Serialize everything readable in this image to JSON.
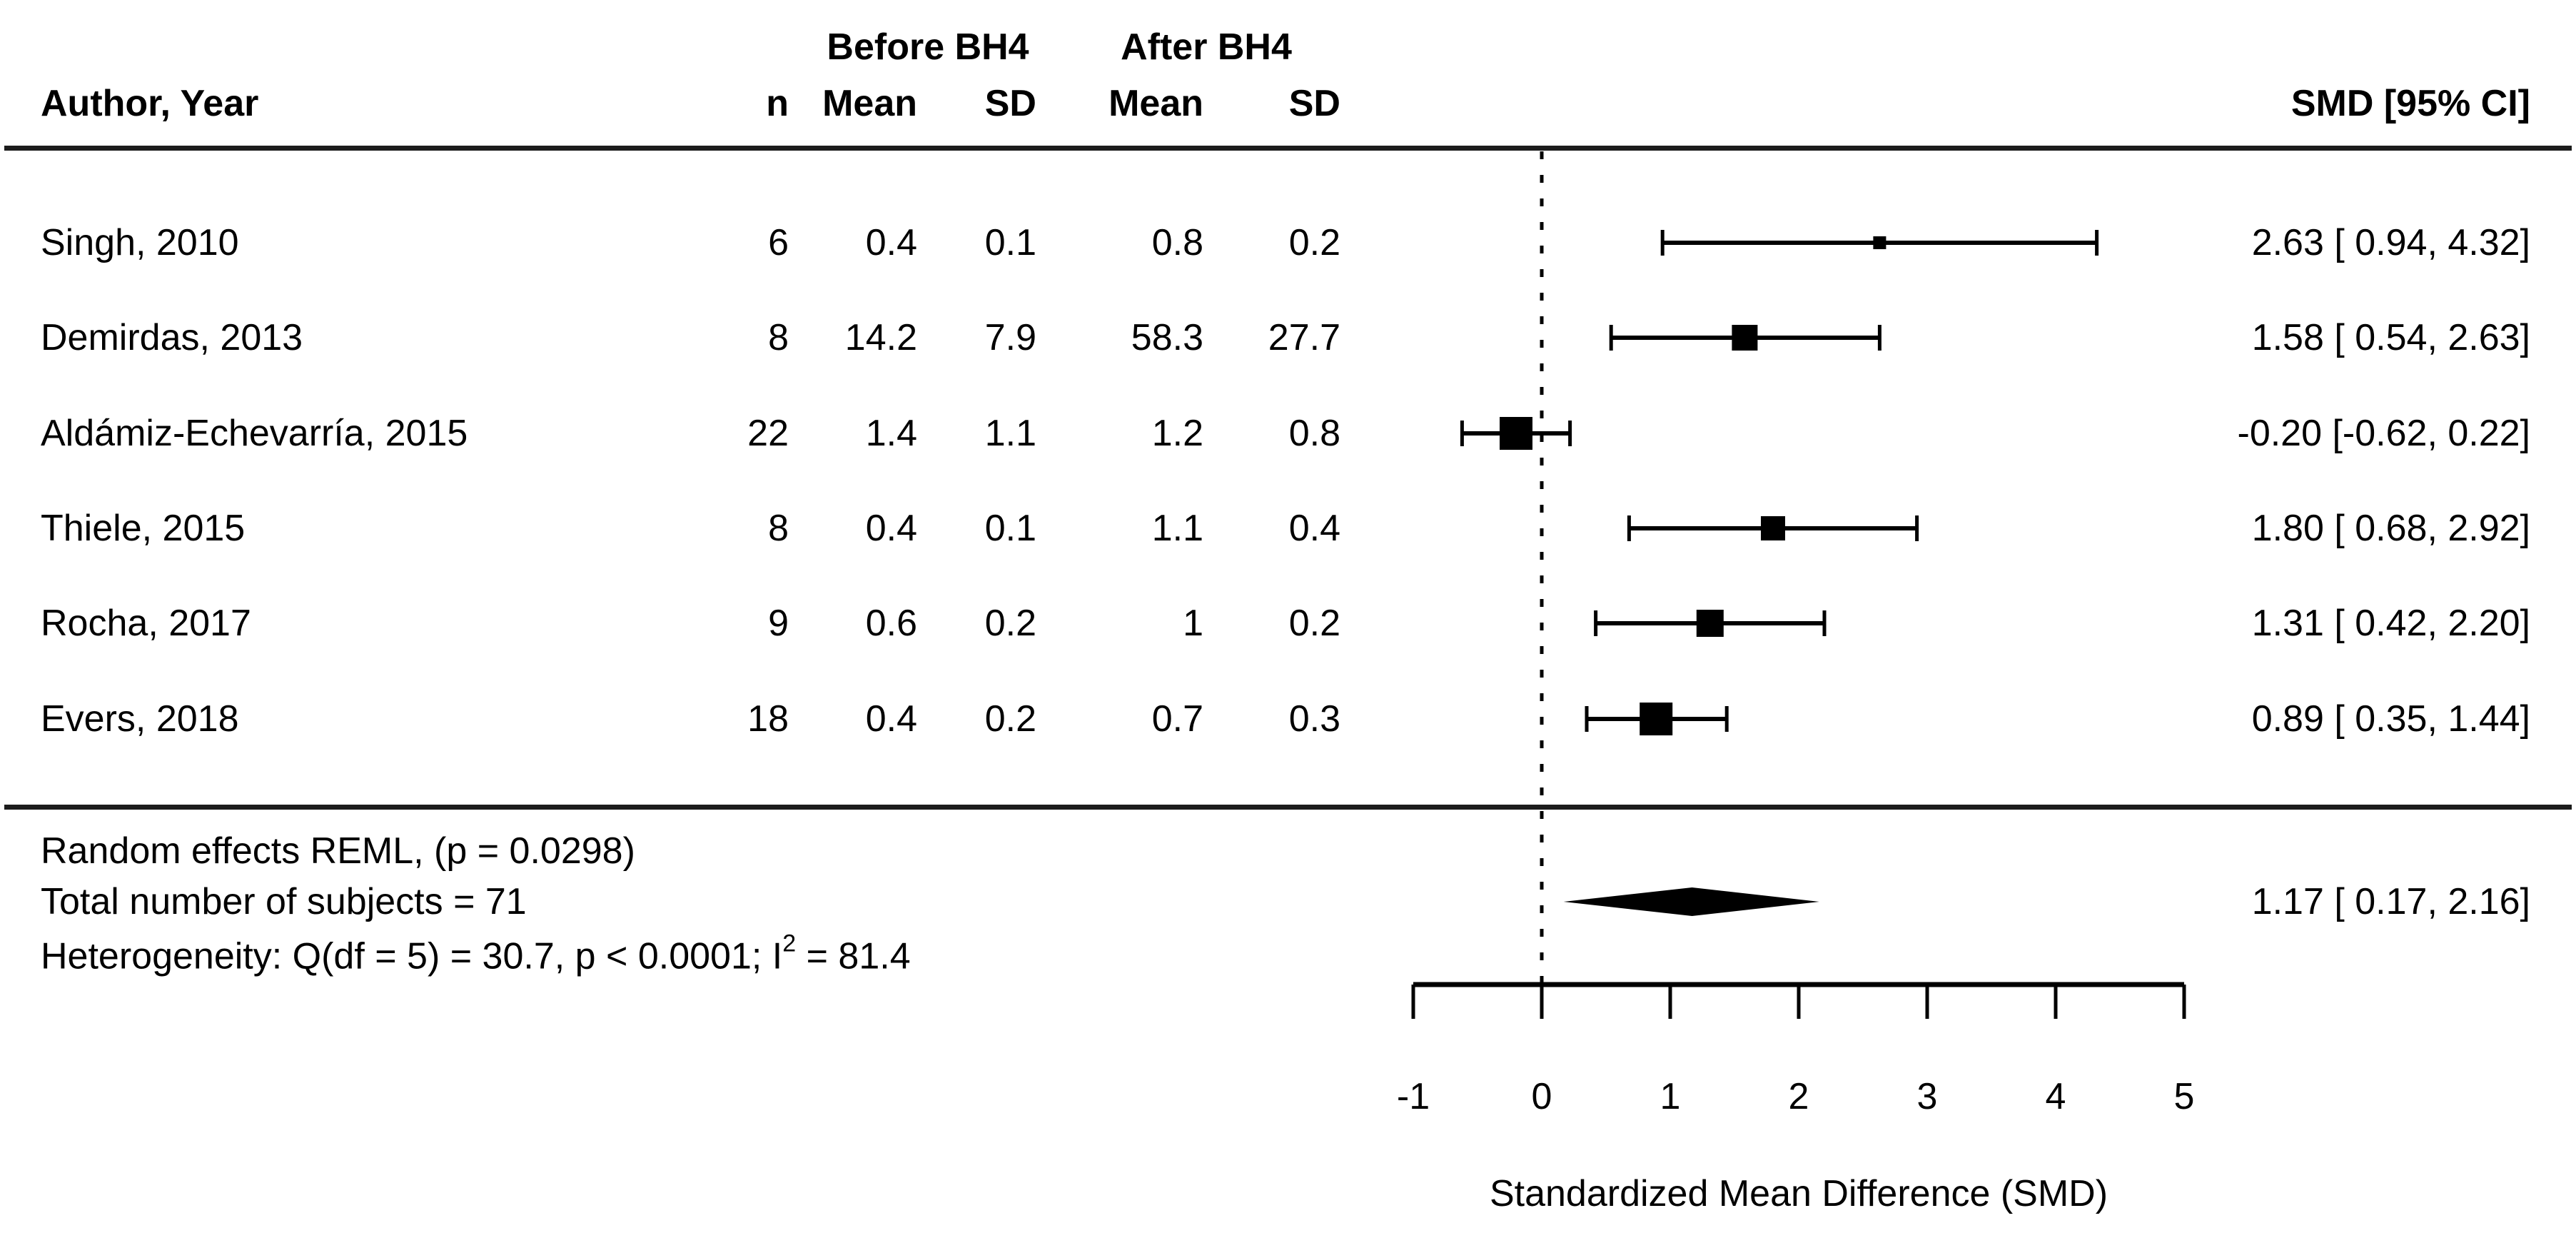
{
  "header": {
    "author_col": "Author, Year",
    "group_before": "Before BH4",
    "group_after": "After BH4",
    "n_col": "n",
    "mean_before_col": "Mean",
    "sd_before_col": "SD",
    "mean_after_col": "Mean",
    "sd_after_col": "SD",
    "smd_col": "SMD [95% CI]"
  },
  "studies": [
    {
      "author": "Singh, 2010",
      "n": "6",
      "mean_before": "0.4",
      "sd_before": "0.1",
      "mean_after": "0.8",
      "sd_after": "0.2",
      "smd": "2.63 [ 0.94, 4.32]"
    },
    {
      "author": "Demirdas, 2013",
      "n": "8",
      "mean_before": "14.2",
      "sd_before": "7.9",
      "mean_after": "58.3",
      "sd_after": "27.7",
      "smd": "1.58 [ 0.54, 2.63]"
    },
    {
      "author": "Aldámiz-Echevarría, 2015",
      "n": "22",
      "mean_before": "1.4",
      "sd_before": "1.1",
      "mean_after": "1.2",
      "sd_after": "0.8",
      "smd": "-0.20 [-0.62, 0.22]"
    },
    {
      "author": "Thiele, 2015",
      "n": "8",
      "mean_before": "0.4",
      "sd_before": "0.1",
      "mean_after": "1.1",
      "sd_after": "0.4",
      "smd": "1.80 [ 0.68, 2.92]"
    },
    {
      "author": "Rocha, 2017",
      "n": "9",
      "mean_before": "0.6",
      "sd_before": "0.2",
      "mean_after": "1",
      "sd_after": "0.2",
      "smd": "1.31 [ 0.42, 2.20]"
    },
    {
      "author": "Evers, 2018",
      "n": "18",
      "mean_before": "0.4",
      "sd_before": "0.2",
      "mean_after": "0.7",
      "sd_after": "0.3",
      "smd": "0.89 [ 0.35, 1.44]"
    }
  ],
  "summary": {
    "line1": "Random effects REML, (p = 0.0298)",
    "line2": "Total number of subjects = 71",
    "het_prefix": "Heterogeneity: Q(df = 5) = 30.7, p < 0.0001; I",
    "het_sup": "2",
    "het_suffix": " = 81.4",
    "smd": "1.17 [ 0.17, 2.16]"
  },
  "axis": {
    "label": "Standardized Mean Difference (SMD)"
  },
  "colors": {
    "ink": "#000000",
    "rule": "#1c1c1c"
  },
  "chart_data": {
    "type": "forest",
    "title": "",
    "xlabel": "Standardized Mean Difference (SMD)",
    "x_axis": {
      "ticks": [
        -1,
        0,
        1,
        2,
        3,
        4,
        5
      ],
      "range": [
        -1,
        5
      ],
      "zero_reference_line": 0
    },
    "studies": [
      {
        "name": "Singh, 2010",
        "estimate": 2.63,
        "ci_lower": 0.94,
        "ci_upper": 4.32,
        "marker_size_px": 18
      },
      {
        "name": "Demirdas, 2013",
        "estimate": 1.58,
        "ci_lower": 0.54,
        "ci_upper": 2.63,
        "marker_size_px": 36
      },
      {
        "name": "Aldámiz-Echevarría, 2015",
        "estimate": -0.2,
        "ci_lower": -0.62,
        "ci_upper": 0.22,
        "marker_size_px": 46
      },
      {
        "name": "Thiele, 2015",
        "estimate": 1.8,
        "ci_lower": 0.68,
        "ci_upper": 2.92,
        "marker_size_px": 34
      },
      {
        "name": "Rocha, 2017",
        "estimate": 1.31,
        "ci_lower": 0.42,
        "ci_upper": 2.2,
        "marker_size_px": 38
      },
      {
        "name": "Evers, 2018",
        "estimate": 0.89,
        "ci_lower": 0.35,
        "ci_upper": 1.44,
        "marker_size_px": 46
      }
    ],
    "summary_diamond": {
      "name": "Random effects REML",
      "estimate": 1.17,
      "ci_lower": 0.17,
      "ci_upper": 2.16
    }
  }
}
